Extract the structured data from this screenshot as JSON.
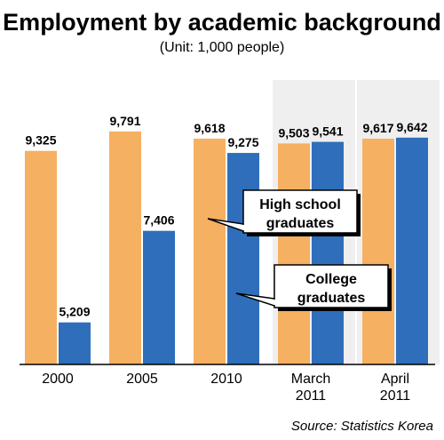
{
  "chart_data": {
    "type": "bar",
    "title": "Employment by academic background",
    "subtitle": "(Unit: 1,000 people)",
    "categories": [
      [
        "2000"
      ],
      [
        "2005"
      ],
      [
        "2010"
      ],
      [
        "March",
        "2011"
      ],
      [
        "April",
        "2011"
      ]
    ],
    "series": [
      {
        "name": "High school graduates",
        "name_lines": [
          "High school",
          "graduates"
        ],
        "color": "#F6B061",
        "values": [
          9325,
          9791,
          9618,
          9503,
          9617
        ],
        "labels": [
          "9,325",
          "9,791",
          "9,618",
          "9,503",
          "9,617"
        ]
      },
      {
        "name": "College graduates",
        "name_lines": [
          "College",
          "graduates"
        ],
        "color": "#2F6EBA",
        "values": [
          5209,
          7406,
          9275,
          9541,
          9642
        ],
        "labels": [
          "5,209",
          "7,406",
          "9,275",
          "9,541",
          "9,642"
        ]
      }
    ],
    "ylim": [
      4200,
      10300
    ],
    "grid": false,
    "legend": "callouts",
    "source": "Source: Statistics Korea"
  }
}
